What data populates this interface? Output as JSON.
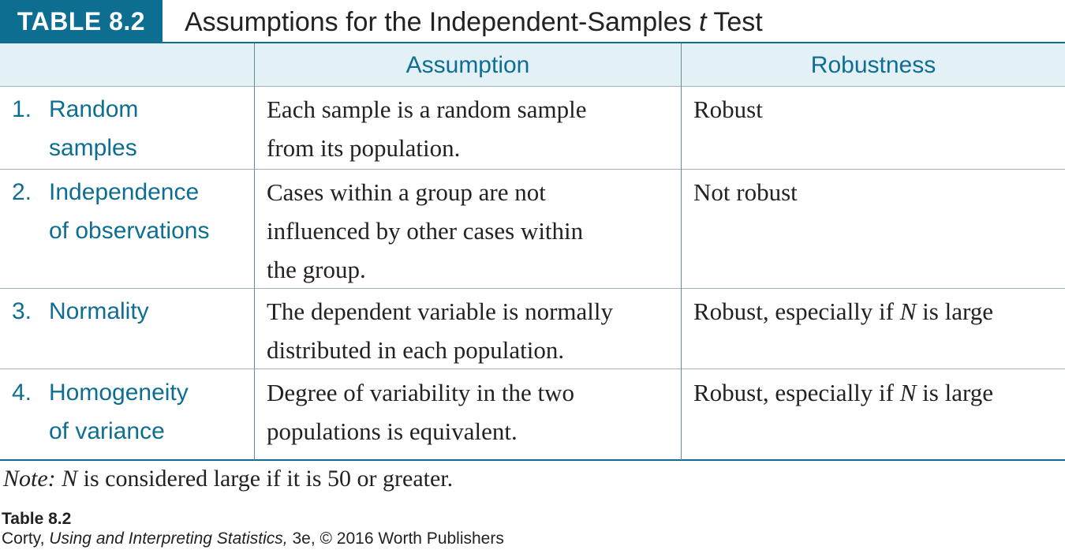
{
  "header": {
    "label": "TABLE 8.2",
    "title_pre": "Assumptions for the Independent-Samples ",
    "title_italic": "t",
    "title_post": " Test"
  },
  "columns": [
    "",
    "Assumption",
    "Robustness"
  ],
  "rows": [
    {
      "num": "1.",
      "name_lines": [
        "Random",
        "samples"
      ],
      "assumption_lines": [
        "Each sample is a random sample",
        "from its population."
      ],
      "robustness_pre": "Robust",
      "robustness_italic": "",
      "robustness_post": ""
    },
    {
      "num": "2.",
      "name_lines": [
        "Independence",
        "of observations"
      ],
      "assumption_lines": [
        "Cases within a group are not",
        "influenced by other cases within",
        "the group."
      ],
      "robustness_pre": "Not robust",
      "robustness_italic": "",
      "robustness_post": ""
    },
    {
      "num": "3.",
      "name_lines": [
        "Normality"
      ],
      "assumption_lines": [
        "The dependent variable is normally",
        "distributed in each population."
      ],
      "robustness_pre": "Robust, especially if ",
      "robustness_italic": "N",
      "robustness_post": " is large"
    },
    {
      "num": "4.",
      "name_lines": [
        "Homogeneity",
        "of variance"
      ],
      "assumption_lines": [
        "Degree of variability in the two",
        "populations is equivalent."
      ],
      "robustness_pre": "Robust, especially if ",
      "robustness_italic": "N",
      "robustness_post": " is large"
    }
  ],
  "note": {
    "label": "Note:",
    "italic": "N",
    "text": " is considered large if it is 50 or greater."
  },
  "credit": {
    "table_ref": "Table 8.2",
    "author": "Corty, ",
    "book": "Using and Interpreting Statistics,",
    "rest": " 3e, © 2016 Worth Publishers"
  },
  "colors": {
    "accent": "#0e6e92",
    "header_fill": "#e3f1f6",
    "text": "#222222"
  }
}
